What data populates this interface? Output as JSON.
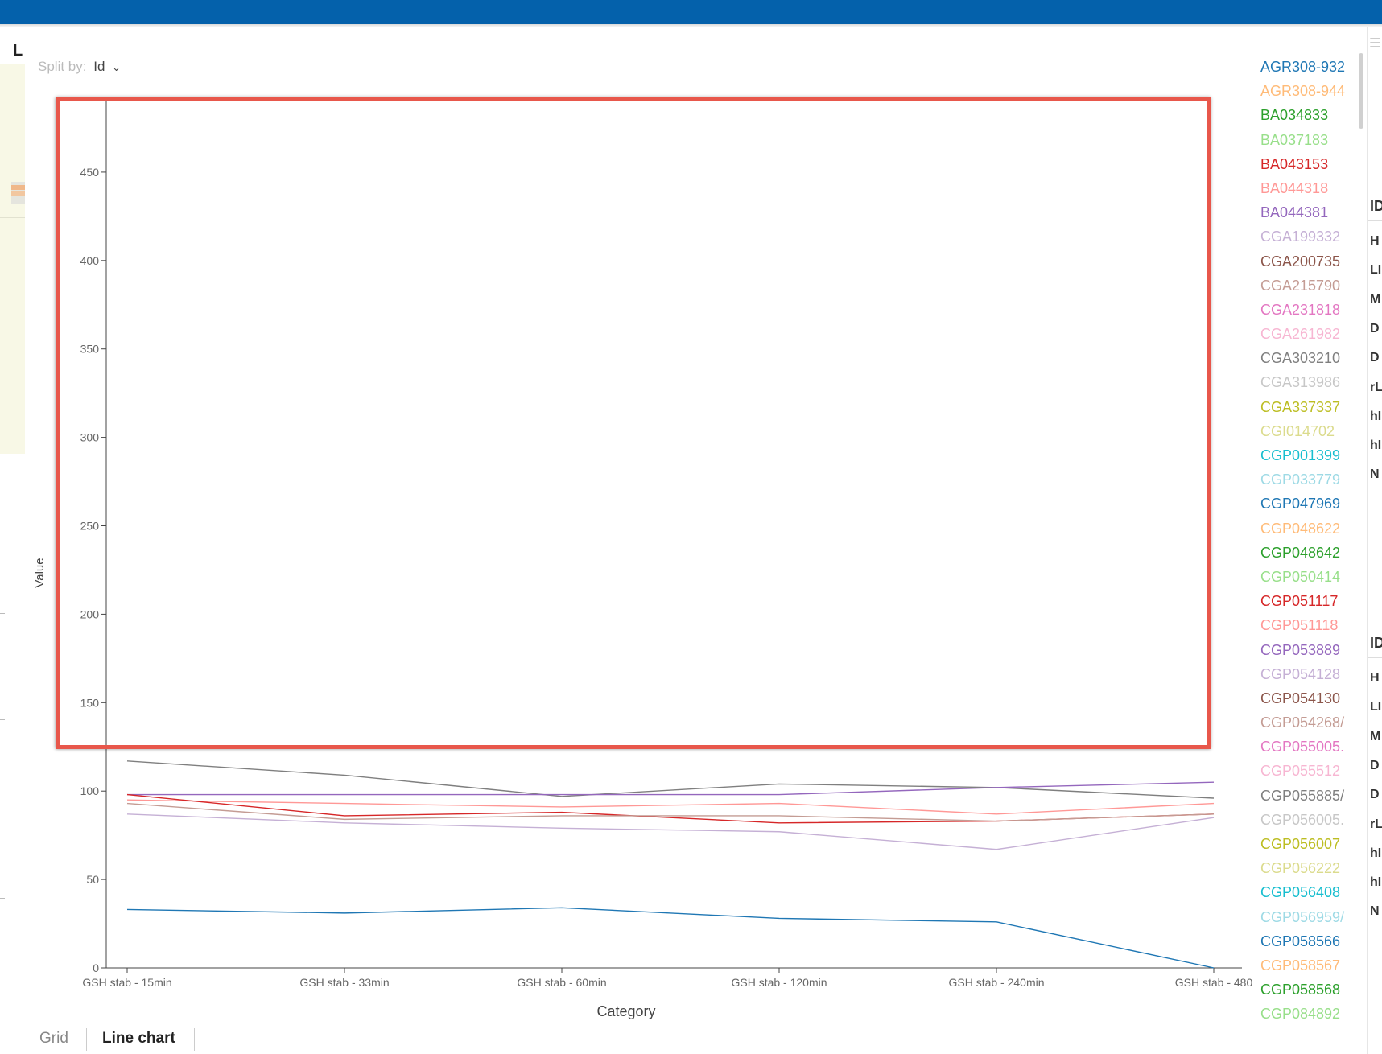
{
  "app": {
    "left_panel_label": "L",
    "right_panel_headers": [
      "ID",
      "ID"
    ],
    "right_panel_rows_a": [
      "H",
      "LI",
      "M",
      "D",
      "D",
      "rL",
      "hI",
      "hI",
      "N"
    ],
    "right_panel_rows_b": [
      "H",
      "LI",
      "M",
      "D",
      "D",
      "rL",
      "hI",
      "hI",
      "N"
    ]
  },
  "toolbar": {
    "split_by_label": "Split by:",
    "split_by_value": "Id",
    "split_by_icon": "chevron-down-icon"
  },
  "tabs": [
    {
      "label": "Grid",
      "active": false
    },
    {
      "label": "Line chart",
      "active": true
    }
  ],
  "colors": {
    "topbar": "#0461ab",
    "highlight": "#e8574b"
  },
  "chart_data": {
    "type": "line",
    "xlabel": "Category",
    "ylabel": "Value",
    "ylim": [
      0,
      490
    ],
    "yticks": [
      0,
      50,
      100,
      150,
      200,
      250,
      300,
      350,
      400,
      450
    ],
    "categories": [
      "GSH stab - 15min",
      "GSH stab - 33min",
      "GSH stab - 60min",
      "GSH stab - 120min",
      "GSH stab - 240min",
      "GSH stab - 480"
    ],
    "grid": false,
    "legend_position": "right",
    "series": [
      {
        "name": "AGR308-932",
        "color": "#1f77b4",
        "values": [
          33,
          31,
          34,
          28,
          26,
          0
        ]
      },
      {
        "name": "CGA303210",
        "color": "#7f7f7f",
        "values": [
          117,
          109,
          97,
          104,
          102,
          96
        ]
      },
      {
        "name": "BA044381",
        "color": "#9467bd",
        "values": [
          98,
          98,
          98,
          98,
          102,
          105
        ]
      },
      {
        "name": "BA044318",
        "color": "#ff9896",
        "values": [
          95,
          93,
          91,
          93,
          87,
          93
        ]
      },
      {
        "name": "BA043153",
        "color": "#d62728",
        "values": [
          98,
          86,
          88,
          82,
          83,
          87
        ]
      },
      {
        "name": "CGA215790",
        "color": "#c49c94",
        "values": [
          93,
          84,
          86,
          86,
          83,
          87
        ]
      },
      {
        "name": "CGA199332",
        "color": "#c5b0d5",
        "values": [
          87,
          82,
          79,
          77,
          67,
          85
        ]
      }
    ],
    "legend": [
      {
        "name": "AGR308-932",
        "color": "#1f77b4"
      },
      {
        "name": "AGR308-944",
        "color": "#ffbb78"
      },
      {
        "name": "BA034833",
        "color": "#2ca02c"
      },
      {
        "name": "BA037183",
        "color": "#98df8a"
      },
      {
        "name": "BA043153",
        "color": "#d62728"
      },
      {
        "name": "BA044318",
        "color": "#ff9896"
      },
      {
        "name": "BA044381",
        "color": "#9467bd"
      },
      {
        "name": "CGA199332",
        "color": "#c5b0d5"
      },
      {
        "name": "CGA200735",
        "color": "#8c564b"
      },
      {
        "name": "CGA215790",
        "color": "#c49c94"
      },
      {
        "name": "CGA231818",
        "color": "#e377c2"
      },
      {
        "name": "CGA261982",
        "color": "#f7b6d2"
      },
      {
        "name": "CGA303210",
        "color": "#7f7f7f"
      },
      {
        "name": "CGA313986",
        "color": "#c7c7c7"
      },
      {
        "name": "CGA337337",
        "color": "#bcbd22"
      },
      {
        "name": "CGI014702",
        "color": "#dbdb8d"
      },
      {
        "name": "CGP001399",
        "color": "#17becf"
      },
      {
        "name": "CGP033779",
        "color": "#9edae5"
      },
      {
        "name": "CGP047969",
        "color": "#1f77b4"
      },
      {
        "name": "CGP048622",
        "color": "#ffbb78"
      },
      {
        "name": "CGP048642",
        "color": "#2ca02c"
      },
      {
        "name": "CGP050414",
        "color": "#98df8a"
      },
      {
        "name": "CGP051117",
        "color": "#d62728"
      },
      {
        "name": "CGP051118",
        "color": "#ff9896"
      },
      {
        "name": "CGP053889",
        "color": "#9467bd"
      },
      {
        "name": "CGP054128",
        "color": "#c5b0d5"
      },
      {
        "name": "CGP054130",
        "color": "#8c564b"
      },
      {
        "name": "CGP054268/",
        "color": "#c49c94"
      },
      {
        "name": "CGP055005.",
        "color": "#e377c2"
      },
      {
        "name": "CGP055512",
        "color": "#f7b6d2"
      },
      {
        "name": "CGP055885/",
        "color": "#7f7f7f"
      },
      {
        "name": "CGP056005.",
        "color": "#c7c7c7"
      },
      {
        "name": "CGP056007",
        "color": "#bcbd22"
      },
      {
        "name": "CGP056222",
        "color": "#dbdb8d"
      },
      {
        "name": "CGP056408",
        "color": "#17becf"
      },
      {
        "name": "CGP056959/",
        "color": "#9edae5"
      },
      {
        "name": "CGP058566",
        "color": "#1f77b4"
      },
      {
        "name": "CGP058567",
        "color": "#ffbb78"
      },
      {
        "name": "CGP058568",
        "color": "#2ca02c"
      },
      {
        "name": "CGP084892",
        "color": "#98df8a"
      }
    ]
  }
}
